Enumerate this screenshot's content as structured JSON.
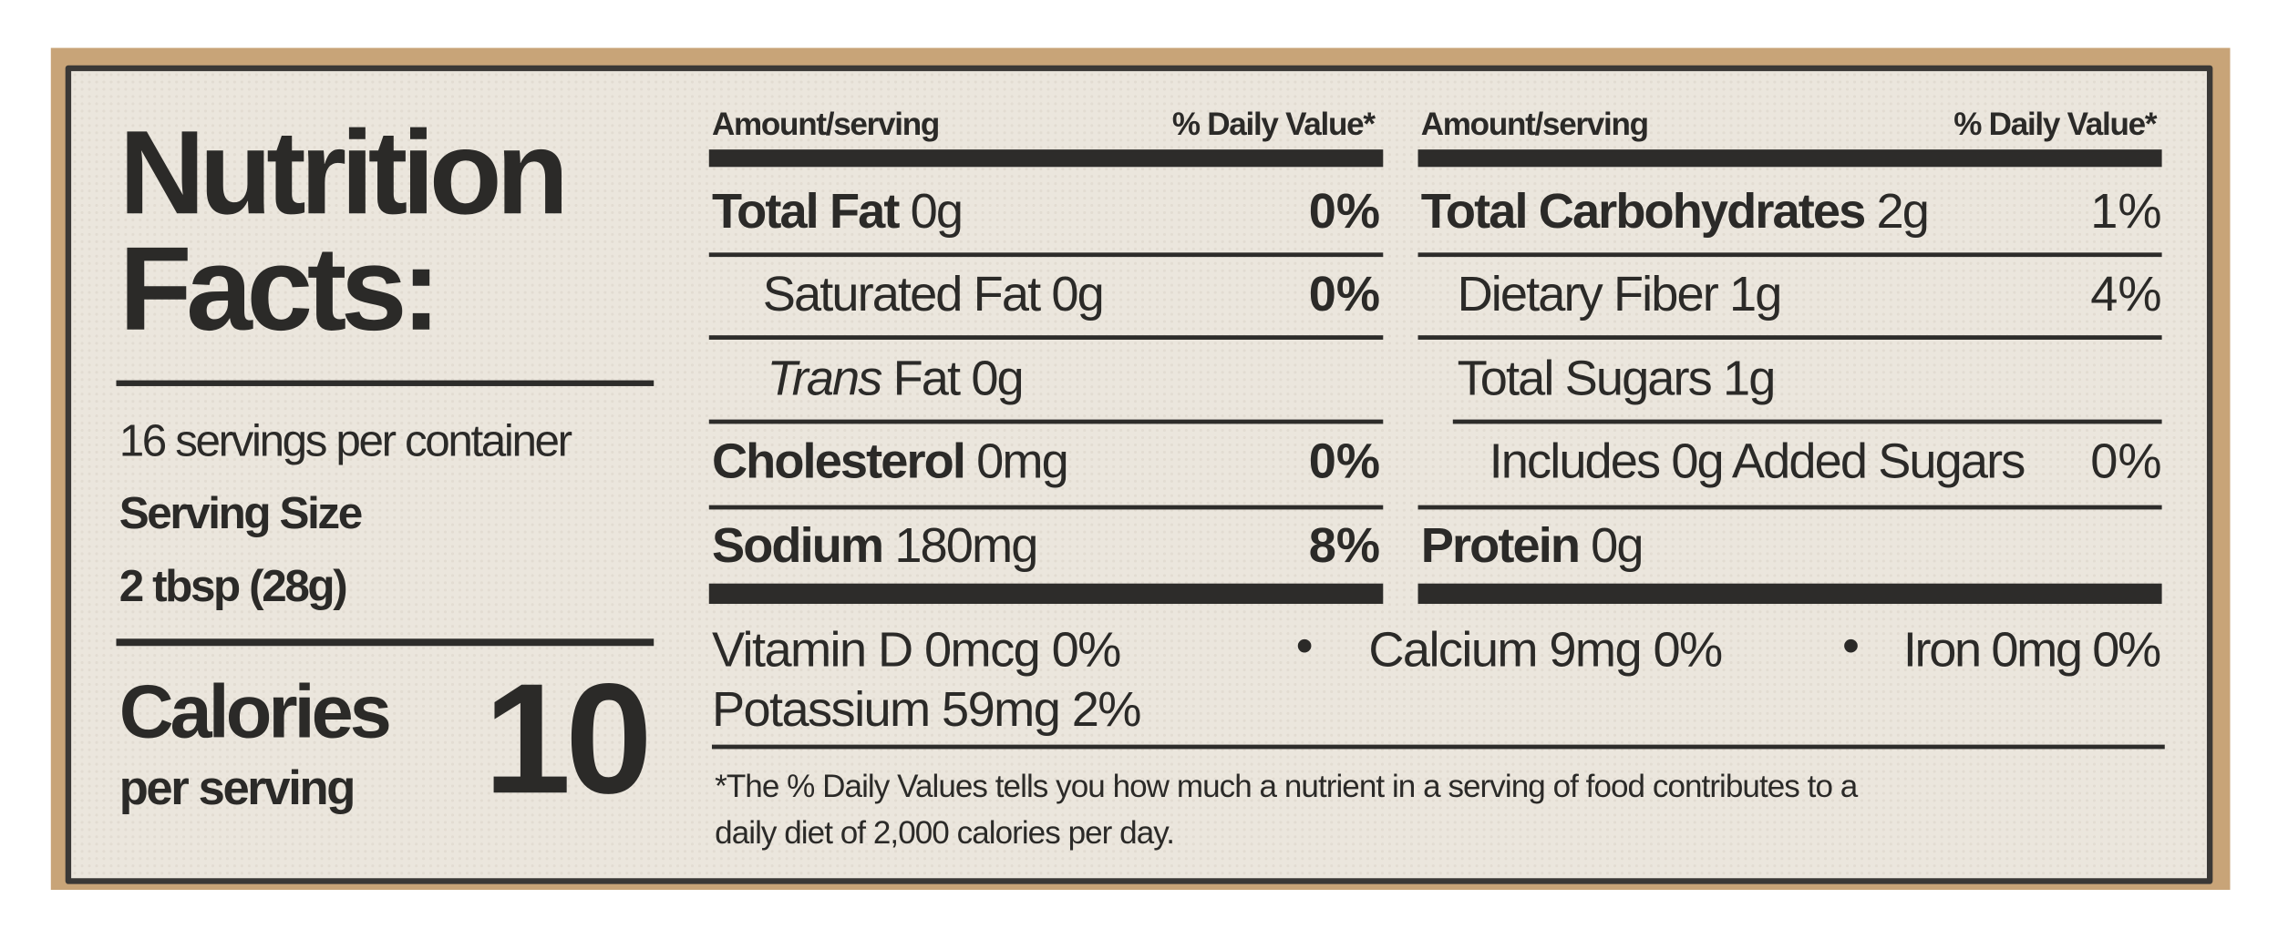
{
  "title": "Nutrition Facts:",
  "servings": "16 servings per container",
  "serving_size_label": "Serving Size",
  "serving_size": "2 tbsp (28g)",
  "calories_label": "Calories",
  "calories_sub": "per serving",
  "calories": 10,
  "left_header": {
    "amount": "Amount/serving",
    "dv": "% Daily Value*"
  },
  "right_header": {
    "amount": "Amount/serving",
    "dv": "% Daily Value*"
  },
  "left_rows": [
    {
      "name": "Total Fat",
      "amount": "0g",
      "dv": "0%"
    },
    {
      "name": "Saturated Fat",
      "amount": "0g",
      "dv": "0%"
    },
    {
      "prefix": "Trans",
      "name": "Fat",
      "amount": "0g"
    },
    {
      "name": "Cholesterol",
      "amount": "0mg",
      "dv": "0%"
    },
    {
      "name": "Sodium",
      "amount": "180mg",
      "dv": "8%"
    }
  ],
  "right_rows": [
    {
      "name": "Total Carbohydrates",
      "amount": "2g",
      "dv": "1%"
    },
    {
      "name": "Dietary Fiber",
      "amount": "1g",
      "dv": "4%"
    },
    {
      "name": "Total Sugars",
      "amount": "1g"
    },
    {
      "name": "Includes 0g Added Sugars",
      "dv": "0%"
    },
    {
      "name": "Protein",
      "amount": "0g"
    }
  ],
  "vitamins": [
    "Vitamin D 0mcg 0%",
    "Calcium 9mg 0%",
    "Iron 0mg 0%",
    "Potassium 59mg 2%"
  ],
  "footnote": [
    "*The % Daily Values tells you how much a nutrient in a serving of food contributes to a",
    "daily diet of 2,000 calories per day."
  ]
}
